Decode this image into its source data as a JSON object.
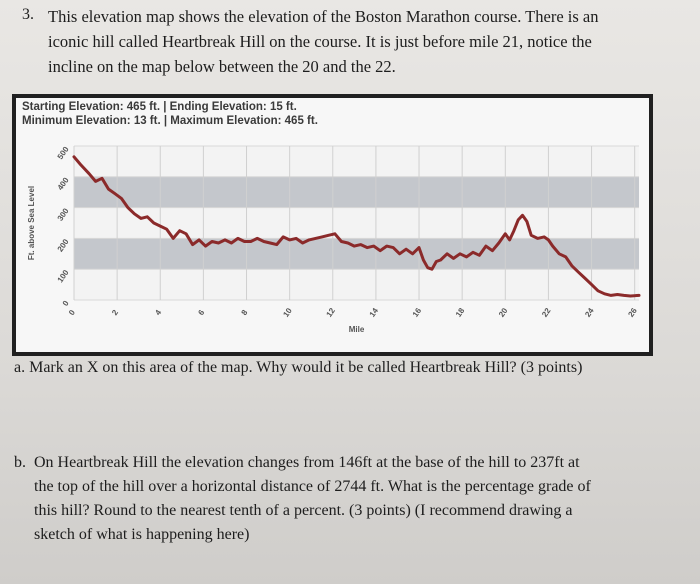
{
  "question": {
    "number": "3.",
    "lines": [
      "This elevation map shows the elevation of the Boston Marathon course.  There is an",
      "iconic hill called Heartbreak Hill on the course.  It is just before mile 21, notice the",
      "incline on the map below between the 20 and the 22."
    ]
  },
  "chart_header": {
    "line1": "Starting Elevation: 465 ft. | Ending Elevation: 15 ft.",
    "line2": "Minimum Elevation: 13 ft. | Maximum Elevation: 465 ft."
  },
  "chart_data": {
    "type": "line",
    "xlabel": "Mile",
    "ylabel": "Ft. above Sea Level",
    "xlim": [
      0,
      26.2
    ],
    "ylim": [
      0,
      500
    ],
    "x_ticks": [
      "0",
      "2",
      "4",
      "6",
      "8",
      "10",
      "12",
      "14",
      "16",
      "18",
      "20",
      "22",
      "24",
      "26"
    ],
    "y_ticks": [
      "0",
      "100",
      "200",
      "300",
      "400",
      "500"
    ],
    "grid": true,
    "line_color": "#8b2a2a",
    "band_color": "#c4c7cc",
    "series": [
      {
        "x": [
          0,
          0.3,
          0.7,
          1.0,
          1.3,
          1.6,
          1.9,
          2.2,
          2.5,
          2.8,
          3.1,
          3.4,
          3.7,
          4.0,
          4.3,
          4.6,
          4.9,
          5.2,
          5.5,
          5.8,
          6.1,
          6.4,
          6.7,
          7.0,
          7.3,
          7.6,
          7.9,
          8.2,
          8.5,
          8.8,
          9.1,
          9.4,
          9.7,
          10.0,
          10.3,
          10.6,
          10.9,
          11.2,
          11.5,
          11.8,
          12.1,
          12.4,
          12.7,
          13.0,
          13.3,
          13.6,
          13.9,
          14.2,
          14.5,
          14.8,
          15.1,
          15.4,
          15.7,
          16.0,
          16.2,
          16.4,
          16.6,
          16.8,
          17.0,
          17.3,
          17.6,
          17.9,
          18.2,
          18.5,
          18.8,
          19.1,
          19.4,
          19.7,
          20.0,
          20.2,
          20.4,
          20.6,
          20.8,
          21.0,
          21.2,
          21.5,
          21.8,
          22.0,
          22.2,
          22.5,
          22.8,
          23.1,
          23.4,
          23.7,
          24.0,
          24.3,
          24.6,
          24.9,
          25.2,
          25.5,
          25.8,
          26.2
        ],
        "y": [
          465,
          440,
          410,
          385,
          395,
          360,
          345,
          330,
          300,
          280,
          265,
          270,
          250,
          240,
          230,
          200,
          225,
          215,
          180,
          195,
          175,
          190,
          185,
          195,
          185,
          200,
          190,
          190,
          200,
          190,
          185,
          180,
          205,
          195,
          200,
          185,
          195,
          200,
          205,
          210,
          215,
          190,
          185,
          175,
          180,
          170,
          175,
          160,
          175,
          170,
          150,
          165,
          150,
          170,
          130,
          105,
          100,
          125,
          130,
          150,
          135,
          150,
          140,
          155,
          145,
          175,
          160,
          185,
          215,
          195,
          225,
          260,
          275,
          255,
          210,
          200,
          205,
          195,
          175,
          150,
          140,
          110,
          90,
          70,
          50,
          30,
          20,
          15,
          18,
          15,
          13,
          15
        ]
      }
    ]
  },
  "sub_a": "a.   Mark an X on this area of the map.  Why would it be called Heartbreak Hill? (3 points)",
  "sub_b": {
    "prefix": "b.",
    "lines": [
      "On Heartbreak Hill the elevation changes from 146ft at the base of the hill to 237ft at",
      "the top of the hill over a horizontal distance of 2744 ft.  What is the percentage grade of",
      "this hill?  Round to the nearest tenth of a percent.  (3 points) (I recommend drawing a",
      "sketch of what is happening here)"
    ]
  }
}
